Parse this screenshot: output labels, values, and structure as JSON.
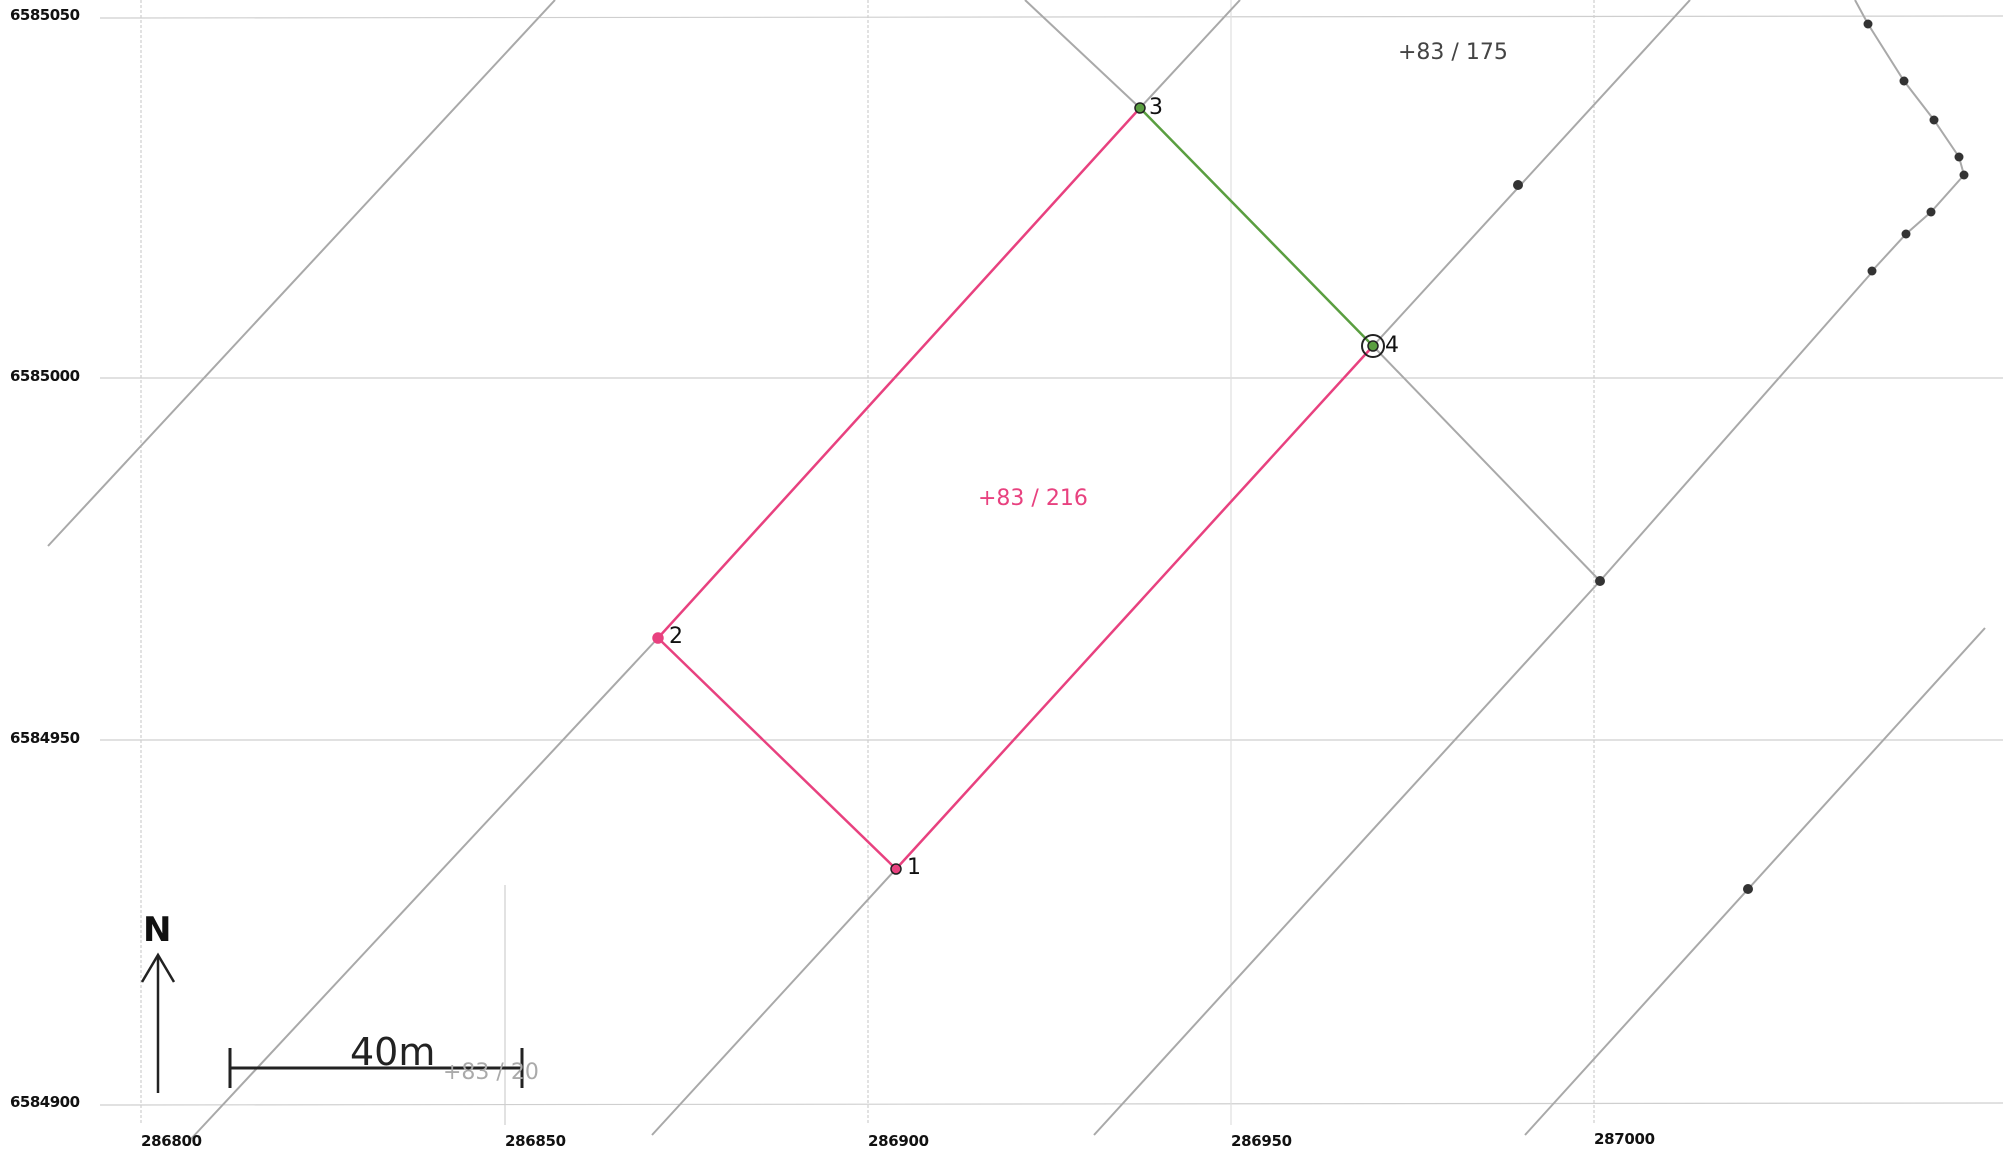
{
  "grid": {
    "y_labels": [
      "6585050",
      "6585000",
      "6584950",
      "6584900"
    ],
    "x_labels": [
      "286800",
      "286850",
      "286900",
      "286950",
      "287000"
    ]
  },
  "parcels": {
    "selected": {
      "label": "+83 / 216",
      "color": "#e8417f"
    },
    "north_east": {
      "label": "+83 / 175"
    },
    "south_west": {
      "label": "+83 / 20"
    }
  },
  "vertices": [
    "1",
    "2",
    "3",
    "4"
  ],
  "highlight_edge_color": "#5a9e40",
  "boundary_color": "#a9a9a9",
  "north_arrow": {
    "label": "N"
  },
  "scale_bar": {
    "label": "40m"
  }
}
